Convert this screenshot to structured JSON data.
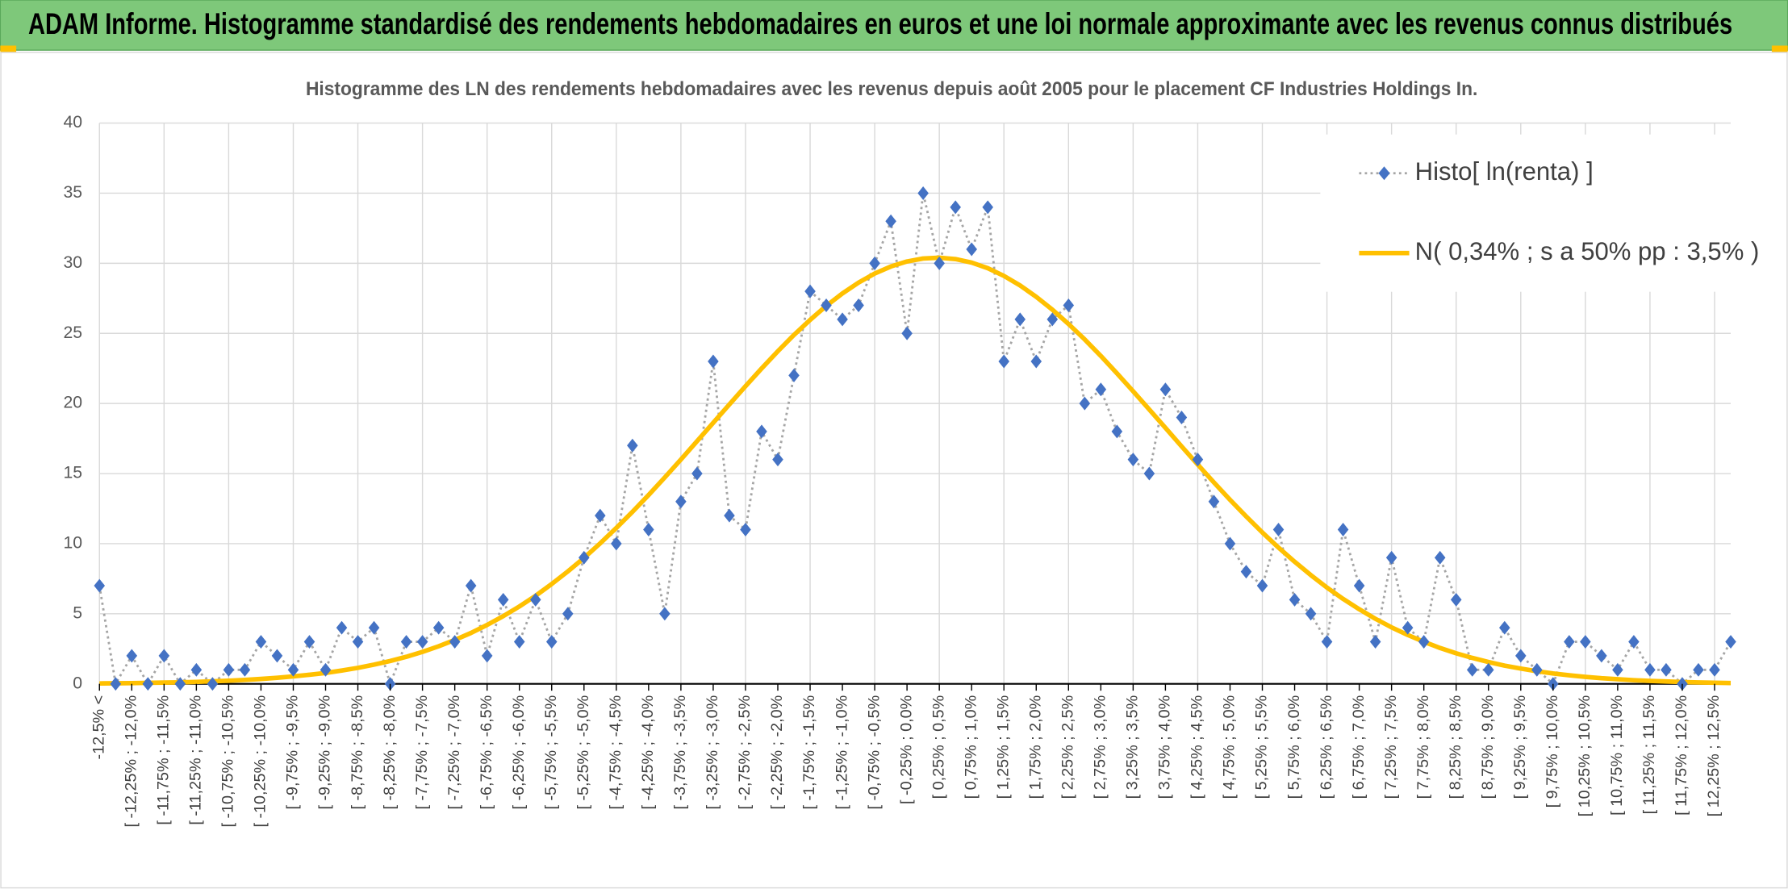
{
  "chart_data": {
    "type": "line",
    "banner": "ADAM Informe. Histogramme standardisé des rendements hebdomadaires en euros et une loi normale approximante avec les revenus connus distribués",
    "title": "Histogramme des LN des rendements hebdomadaires avec les revenus depuis août 2005 pour le placement CF Industries Holdings In.",
    "categories": [
      "-12,5% <",
      null,
      "[ -12,25% ; -12,0%",
      null,
      "[ -11,75% ; -11,5%",
      null,
      "[ -11,25% ; -11,0%",
      null,
      "[ -10,75% ; -10,5%",
      null,
      "[ -10,25% ; -10,0%",
      null,
      "[ -9,75% ; -9,5%",
      null,
      "[ -9,25% ; -9,0%",
      null,
      "[ -8,75% ; -8,5%",
      null,
      "[ -8,25% ; -8,0%",
      null,
      "[ -7,75% ; -7,5%",
      null,
      "[ -7,25% ; -7,0%",
      null,
      "[ -6,75% ; -6,5%",
      null,
      "[ -6,25% ; -6,0%",
      null,
      "[ -5,75% ; -5,5%",
      null,
      "[ -5,25% ; -5,0%",
      null,
      "[ -4,75% ; -4,5%",
      null,
      "[ -4,25% ; -4,0%",
      null,
      "[ -3,75% ; -3,5%",
      null,
      "[ -3,25% ; -3,0%",
      null,
      "[ -2,75% ; -2,5%",
      null,
      "[ -2,25% ; -2,0%",
      null,
      "[ -1,75% ; -1,5%",
      null,
      "[ -1,25% ; -1,0%",
      null,
      "[ -0,75% ; -0,5%",
      null,
      "[ -0,25% ; 0,0%",
      null,
      "[ 0,25% ; 0,5%",
      null,
      "[ 0,75% ; 1,0%",
      null,
      "[ 1,25% ; 1,5%",
      null,
      "[ 1,75% ; 2,0%",
      null,
      "[ 2,25% ; 2,5%",
      null,
      "[ 2,75% ; 3,0%",
      null,
      "[ 3,25% ; 3,5%",
      null,
      "[ 3,75% ; 4,0%",
      null,
      "[ 4,25% ; 4,5%",
      null,
      "[ 4,75% ; 5,0%",
      null,
      "[ 5,25% ; 5,5%",
      null,
      "[ 5,75% ; 6,0%",
      null,
      "[ 6,25% ; 6,5%",
      null,
      "[ 6,75% ; 7,0%",
      null,
      "[ 7,25% ; 7,5%",
      null,
      "[ 7,75% ; 8,0%",
      null,
      "[ 8,25% ; 8,5%",
      null,
      "[ 8,75% ; 9,0%",
      null,
      "[ 9,25% ; 9,5%",
      null,
      "[ 9,75% ; 10,0%",
      null,
      "[ 10,25% ; 10,5%",
      null,
      "[ 10,75% ; 11,0%",
      null,
      "[ 11,25% ; 11,5%",
      null,
      "[ 11,75% ; 12,0%",
      null,
      "[ 12,25% ; 12,5%",
      null
    ],
    "series": [
      {
        "name": "Histo[ ln(renta) ]",
        "color": "#4472c4",
        "values": [
          7,
          0,
          2,
          0,
          2,
          0,
          1,
          0,
          1,
          1,
          3,
          2,
          1,
          3,
          1,
          4,
          3,
          4,
          0,
          3,
          3,
          4,
          3,
          7,
          2,
          6,
          3,
          6,
          3,
          5,
          9,
          12,
          10,
          17,
          11,
          5,
          13,
          15,
          23,
          12,
          11,
          18,
          16,
          22,
          28,
          27,
          26,
          27,
          30,
          33,
          25,
          35,
          30,
          34,
          31,
          34,
          23,
          26,
          23,
          26,
          27,
          20,
          21,
          18,
          16,
          15,
          21,
          19,
          16,
          13,
          10,
          8,
          7,
          11,
          6,
          5,
          3,
          11,
          7,
          3,
          9,
          4,
          3,
          9,
          6,
          1,
          1,
          4,
          2,
          1,
          0,
          3,
          3,
          2,
          1,
          3,
          1,
          1,
          0,
          1,
          1,
          3
        ]
      },
      {
        "name": "N( 0,34% ; s a 50% pp : 3,5% )",
        "color": "#ffc000",
        "values": [
          0.03,
          0.04,
          0.05,
          0.07,
          0.09,
          0.11,
          0.14,
          0.18,
          0.22,
          0.28,
          0.35,
          0.43,
          0.53,
          0.65,
          0.78,
          0.95,
          1.14,
          1.37,
          1.63,
          1.93,
          2.28,
          2.68,
          3.13,
          3.63,
          4.2,
          4.83,
          5.52,
          6.28,
          7.12,
          8.02,
          8.98,
          10.02,
          11.12,
          12.27,
          13.47,
          14.72,
          16.0,
          17.31,
          18.62,
          19.93,
          21.23,
          22.5,
          23.72,
          24.89,
          25.96,
          26.96,
          27.85,
          28.62,
          29.27,
          29.77,
          30.13,
          30.34,
          30.4,
          30.3,
          30.05,
          29.65,
          29.1,
          28.42,
          27.61,
          26.69,
          25.67,
          24.57,
          23.39,
          22.15,
          20.87,
          19.57,
          18.26,
          16.94,
          15.64,
          14.37,
          13.13,
          11.94,
          10.8,
          9.72,
          8.71,
          7.76,
          6.87,
          6.06,
          5.32,
          4.64,
          4.03,
          3.49,
          3.0,
          2.56,
          2.18,
          1.85,
          1.56,
          1.3,
          1.09,
          0.9,
          0.74,
          0.61,
          0.5,
          0.4,
          0.33,
          0.26,
          0.21,
          0.17,
          0.13,
          0.1,
          0.08,
          0.06
        ]
      }
    ],
    "ylim": [
      0,
      40
    ],
    "yticks": [
      0,
      5,
      10,
      15,
      20,
      25,
      30,
      35,
      40
    ],
    "grid": true
  }
}
